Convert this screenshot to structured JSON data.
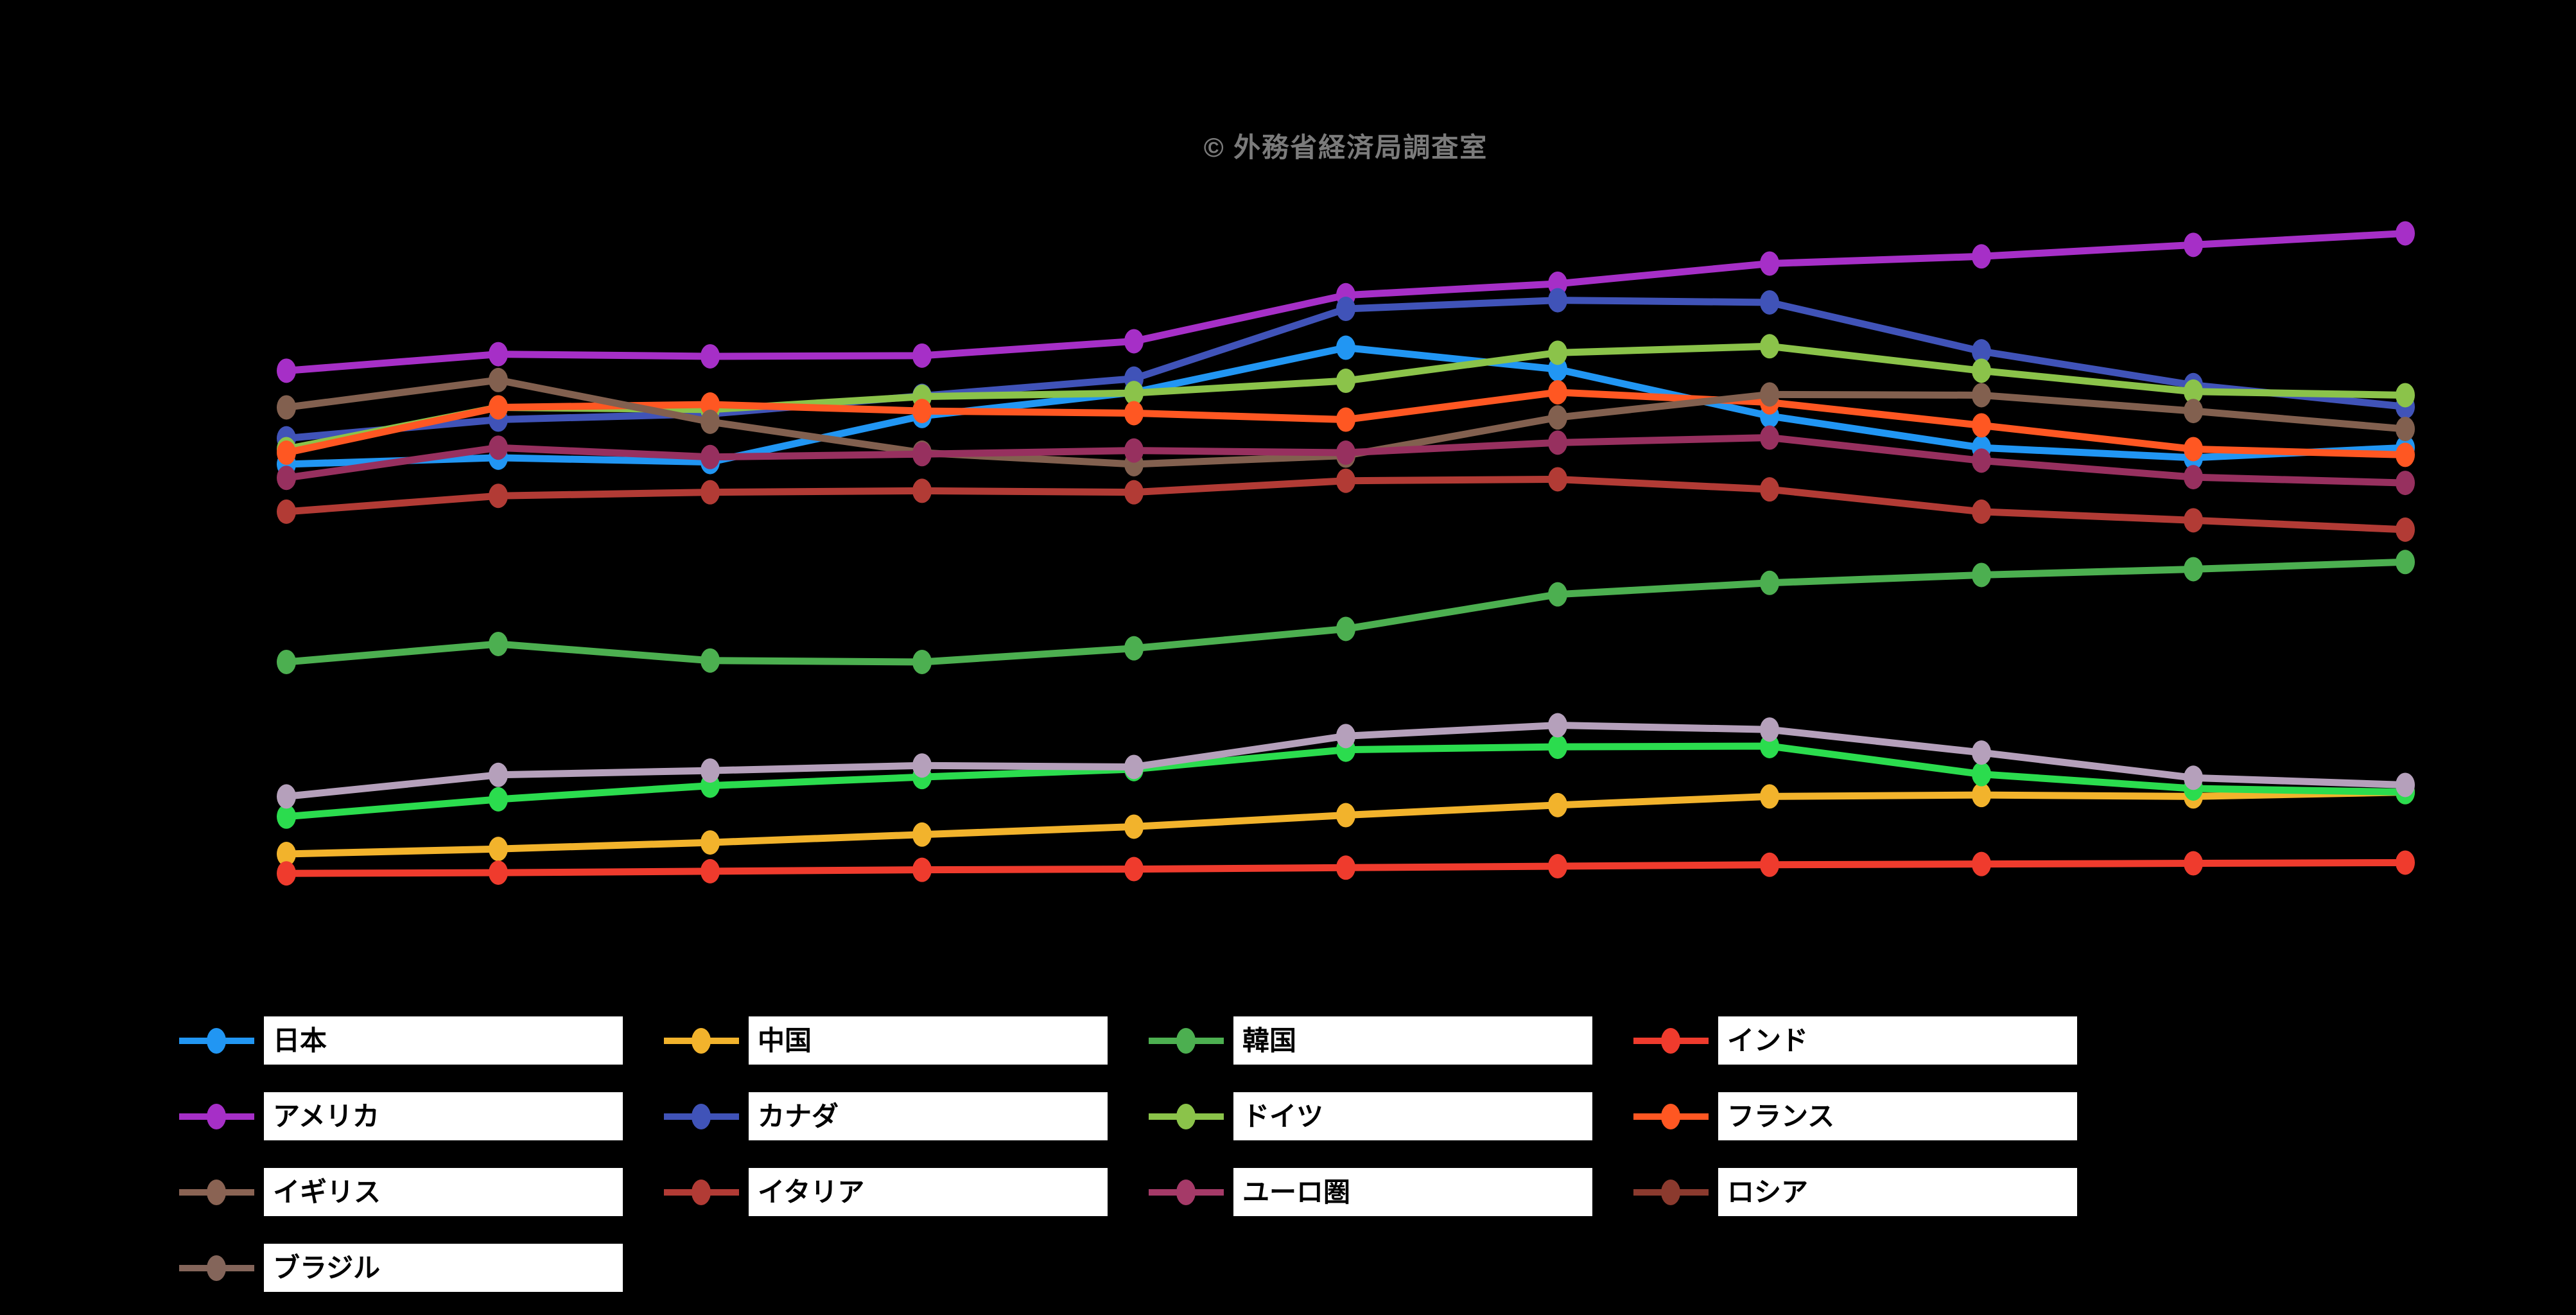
{
  "title": "© 外務省経済局調査室",
  "colors": {
    "background": "#000000",
    "title_text": "#7b7b7b",
    "legend_box_bg": "#ffffff",
    "legend_label_text": "#000000"
  },
  "chart_data": {
    "type": "line",
    "title": "© 外務省経済局調査室",
    "xlabel": "",
    "ylabel": "",
    "x": [
      1,
      2,
      3,
      4,
      5,
      6,
      7,
      8,
      9,
      10,
      11
    ],
    "x_tick_labels_visible": false,
    "y_tick_labels_visible": false,
    "grid": false,
    "legend_position": "bottom",
    "ylim": [
      0,
      100
    ],
    "marker": "point",
    "series": [
      {
        "name": "日本",
        "line_color": "#2196f3",
        "legend_color": "#2196f3",
        "values": [
          66.7,
          67.6,
          67.0,
          73.4,
          76.7,
          82.9,
          79.9,
          73.4,
          69.0,
          67.6,
          69.0
        ]
      },
      {
        "name": "中国",
        "line_color": "#f2b32c",
        "legend_color": "#f2b32c",
        "values": [
          12.5,
          13.2,
          14.1,
          15.2,
          16.3,
          17.9,
          19.3,
          20.5,
          20.7,
          20.5,
          21.1
        ]
      },
      {
        "name": "韓国",
        "line_color": "#4caf50",
        "legend_color": "#4caf50",
        "values": [
          39.2,
          41.7,
          39.4,
          39.2,
          41.1,
          43.8,
          48.6,
          50.2,
          51.3,
          52.1,
          53.1
        ]
      },
      {
        "name": "インド",
        "line_color": "#ef3b2d",
        "legend_color": "#ef3b2d",
        "values": [
          9.8,
          9.9,
          10.1,
          10.3,
          10.4,
          10.6,
          10.8,
          11.0,
          11.1,
          11.2,
          11.3
        ]
      },
      {
        "name": "アメリカ",
        "line_color": "#a62fc7",
        "legend_color": "#a62fc7",
        "values": [
          79.7,
          82.0,
          81.7,
          81.8,
          83.8,
          90.2,
          91.8,
          94.6,
          95.6,
          97.2,
          98.8
        ]
      },
      {
        "name": "カナダ",
        "line_color": "#4053b8",
        "legend_color": "#4053b8",
        "values": [
          70.3,
          72.9,
          73.7,
          76.2,
          78.6,
          88.3,
          89.5,
          89.2,
          82.4,
          77.7,
          74.7
        ]
      },
      {
        "name": "ドイツ",
        "line_color": "#8bc34a",
        "legend_color": "#8bc34a",
        "values": [
          68.8,
          74.6,
          74.3,
          76.1,
          76.6,
          78.3,
          82.2,
          83.1,
          79.7,
          76.8,
          76.3
        ]
      },
      {
        "name": "フランス",
        "line_color": "#ff5722",
        "legend_color": "#ff5722",
        "values": [
          68.3,
          74.6,
          75.0,
          74.1,
          73.8,
          72.9,
          76.7,
          75.3,
          72.1,
          68.8,
          68.0
        ]
      },
      {
        "name": "イギリス",
        "line_color": "#82604f",
        "legend_color": "#8a6353",
        "values": [
          74.6,
          78.4,
          72.6,
          68.3,
          66.7,
          67.9,
          73.2,
          76.4,
          76.3,
          74.1,
          71.6
        ]
      },
      {
        "name": "イタリア",
        "line_color": "#b23b35",
        "legend_color": "#b23b35",
        "values": [
          60.1,
          62.3,
          62.8,
          63.0,
          62.8,
          64.4,
          64.6,
          63.2,
          60.1,
          58.9,
          57.6
        ]
      },
      {
        "name": "ユーロ圏",
        "line_color": "#97305f",
        "legend_color": "#a53a68",
        "values": [
          64.8,
          69.0,
          67.7,
          68.1,
          68.6,
          68.3,
          69.7,
          70.4,
          67.2,
          64.9,
          64.1
        ]
      },
      {
        "name": "ロシア",
        "line_color": "#2bdc4e",
        "legend_color": "#8b3a2e",
        "values": [
          17.7,
          20.1,
          22.0,
          23.2,
          24.3,
          27.0,
          27.4,
          27.5,
          23.6,
          21.6,
          21.1
        ]
      },
      {
        "name": "ブラジル",
        "line_color": "#b5a0bb",
        "legend_color": "#84655a",
        "values": [
          20.5,
          23.5,
          24.1,
          24.8,
          24.6,
          28.9,
          30.4,
          29.8,
          26.6,
          23.1,
          22.1
        ]
      }
    ]
  }
}
